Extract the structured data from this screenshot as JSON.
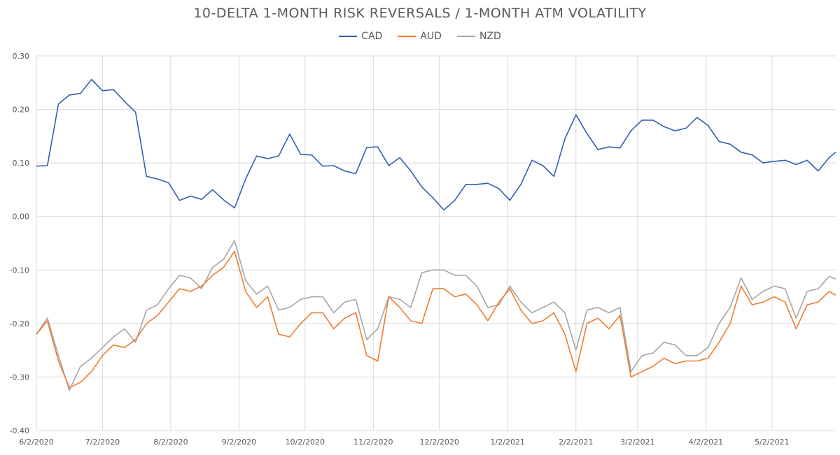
{
  "chart_data": {
    "type": "line",
    "title": "10-DELTA 1-MONTH RISK REVERSALS / 1-MONTH ATM VOLATILITY",
    "xlabel": "",
    "ylabel": "",
    "ylim": [
      -0.4,
      0.3
    ],
    "yticks": [
      "0.30",
      "0.20",
      "0.10",
      "0.00",
      "-0.10",
      "-0.20",
      "-0.30",
      "-0.40"
    ],
    "xticks": [
      "6/2/2020",
      "7/2/2020",
      "8/2/2020",
      "9/2/2020",
      "10/2/2020",
      "11/2/2020",
      "12/2/2020",
      "1/2/2021",
      "2/2/2021",
      "3/2/2021",
      "4/2/2021",
      "5/2/2021"
    ],
    "xrange": [
      "6/2/2020",
      "5/31/2021"
    ],
    "grid": true,
    "legend_position": "top",
    "x": [
      "6/2/2020",
      "6/7/2020",
      "6/12/2020",
      "6/17/2020",
      "6/22/2020",
      "6/27/2020",
      "7/2/2020",
      "7/7/2020",
      "7/12/2020",
      "7/17/2020",
      "7/22/2020",
      "7/27/2020",
      "8/1/2020",
      "8/6/2020",
      "8/11/2020",
      "8/16/2020",
      "8/21/2020",
      "8/26/2020",
      "8/31/2020",
      "9/5/2020",
      "9/10/2020",
      "9/15/2020",
      "9/20/2020",
      "9/25/2020",
      "9/30/2020",
      "10/5/2020",
      "10/10/2020",
      "10/15/2020",
      "10/20/2020",
      "10/25/2020",
      "10/30/2020",
      "11/4/2020",
      "11/9/2020",
      "11/14/2020",
      "11/19/2020",
      "11/24/2020",
      "11/29/2020",
      "12/4/2020",
      "12/9/2020",
      "12/14/2020",
      "12/19/2020",
      "12/24/2020",
      "12/29/2020",
      "1/3/2021",
      "1/8/2021",
      "1/13/2021",
      "1/18/2021",
      "1/23/2021",
      "1/28/2021",
      "2/2/2021",
      "2/7/2021",
      "2/12/2021",
      "2/17/2021",
      "2/22/2021",
      "2/27/2021",
      "3/4/2021",
      "3/9/2021",
      "3/14/2021",
      "3/19/2021",
      "3/24/2021",
      "3/29/2021",
      "4/3/2021",
      "4/8/2021",
      "4/13/2021",
      "4/18/2021",
      "4/23/2021",
      "4/28/2021",
      "5/3/2021",
      "5/8/2021",
      "5/13/2021",
      "5/18/2021",
      "5/23/2021",
      "5/28/2021",
      "5/31/2021"
    ],
    "series": [
      {
        "name": "CAD",
        "color": "#2f5fb3",
        "values": [
          0.094,
          0.095,
          0.21,
          0.227,
          0.23,
          0.256,
          0.235,
          0.237,
          0.215,
          0.195,
          0.075,
          0.07,
          0.063,
          0.03,
          0.038,
          0.032,
          0.05,
          0.031,
          0.016,
          0.07,
          0.113,
          0.108,
          0.113,
          0.154,
          0.116,
          0.115,
          0.094,
          0.095,
          0.085,
          0.08,
          0.129,
          0.13,
          0.095,
          0.11,
          0.085,
          0.055,
          0.035,
          0.012,
          0.03,
          0.06,
          0.06,
          0.062,
          0.052,
          0.03,
          0.06,
          0.105,
          0.095,
          0.075,
          0.145,
          0.19,
          0.155,
          0.125,
          0.13,
          0.128,
          0.16,
          0.18,
          0.18,
          0.168,
          0.16,
          0.165,
          0.185,
          0.17,
          0.14,
          0.135,
          0.12,
          0.115,
          0.1,
          0.103,
          0.105,
          0.097,
          0.105,
          0.085,
          0.11,
          0.12
        ]
      },
      {
        "name": "AUD",
        "color": "#ed7d31",
        "values": [
          -0.22,
          -0.195,
          -0.27,
          -0.32,
          -0.31,
          -0.29,
          -0.26,
          -0.24,
          -0.245,
          -0.23,
          -0.2,
          -0.185,
          -0.16,
          -0.135,
          -0.14,
          -0.13,
          -0.11,
          -0.095,
          -0.065,
          -0.14,
          -0.17,
          -0.15,
          -0.22,
          -0.225,
          -0.2,
          -0.18,
          -0.18,
          -0.21,
          -0.19,
          -0.18,
          -0.26,
          -0.27,
          -0.15,
          -0.17,
          -0.195,
          -0.2,
          -0.135,
          -0.135,
          -0.15,
          -0.145,
          -0.165,
          -0.195,
          -0.16,
          -0.135,
          -0.175,
          -0.2,
          -0.195,
          -0.18,
          -0.22,
          -0.29,
          -0.2,
          -0.19,
          -0.21,
          -0.185,
          -0.3,
          -0.29,
          -0.28,
          -0.265,
          -0.275,
          -0.27,
          -0.27,
          -0.265,
          -0.235,
          -0.2,
          -0.13,
          -0.165,
          -0.16,
          -0.15,
          -0.16,
          -0.21,
          -0.165,
          -0.16,
          -0.14,
          -0.147
        ]
      },
      {
        "name": "NZD",
        "color": "#a5a5a5",
        "values": [
          -0.22,
          -0.19,
          -0.26,
          -0.325,
          -0.28,
          -0.265,
          -0.245,
          -0.225,
          -0.21,
          -0.235,
          -0.175,
          -0.165,
          -0.135,
          -0.11,
          -0.115,
          -0.135,
          -0.095,
          -0.08,
          -0.045,
          -0.12,
          -0.145,
          -0.13,
          -0.175,
          -0.17,
          -0.155,
          -0.15,
          -0.15,
          -0.18,
          -0.16,
          -0.155,
          -0.23,
          -0.21,
          -0.15,
          -0.155,
          -0.17,
          -0.105,
          -0.1,
          -0.1,
          -0.11,
          -0.11,
          -0.13,
          -0.17,
          -0.165,
          -0.13,
          -0.16,
          -0.18,
          -0.17,
          -0.16,
          -0.18,
          -0.25,
          -0.175,
          -0.17,
          -0.18,
          -0.17,
          -0.29,
          -0.26,
          -0.255,
          -0.235,
          -0.24,
          -0.26,
          -0.26,
          -0.245,
          -0.2,
          -0.17,
          -0.115,
          -0.155,
          -0.14,
          -0.13,
          -0.135,
          -0.19,
          -0.14,
          -0.135,
          -0.112,
          -0.117
        ]
      }
    ]
  }
}
